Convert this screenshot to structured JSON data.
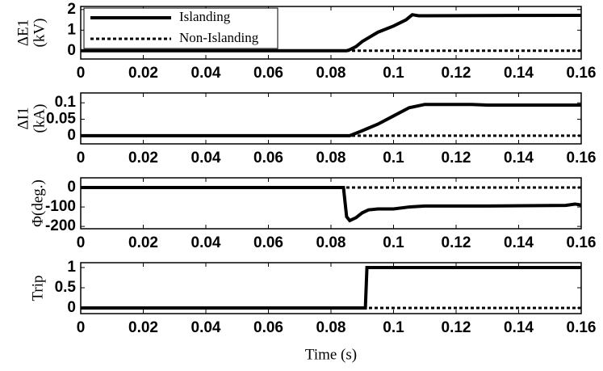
{
  "chart_data": [
    {
      "type": "line",
      "ylabel": [
        "ΔE1",
        "(kV)"
      ],
      "legend": "upper left",
      "x": [
        0,
        0.085,
        0.086,
        0.088,
        0.09,
        0.095,
        0.1,
        0.104,
        0.106,
        0.108,
        0.11,
        0.16
      ],
      "series": [
        {
          "name": "Islanding",
          "color": "#000000",
          "dash": false,
          "values": [
            0,
            0,
            0.05,
            0.2,
            0.45,
            0.9,
            1.2,
            1.5,
            1.75,
            1.7,
            1.7,
            1.72
          ]
        },
        {
          "name": "Non-Islanding",
          "color": "#000000",
          "dash": true,
          "values": [
            0,
            0,
            0,
            0,
            0,
            0,
            0,
            0,
            0,
            0,
            0,
            0
          ]
        }
      ],
      "xlim": [
        0,
        0.16
      ],
      "xticks": [
        0,
        0.02,
        0.04,
        0.06,
        0.08,
        0.1,
        0.12,
        0.14,
        0.16
      ],
      "ylim": [
        -0.4,
        2.15
      ],
      "yticks": [
        0,
        1,
        2
      ]
    },
    {
      "type": "line",
      "ylabel": [
        "ΔI1",
        "(kA)"
      ],
      "x": [
        0,
        0.086,
        0.09,
        0.095,
        0.1,
        0.105,
        0.11,
        0.125,
        0.13,
        0.16
      ],
      "series": [
        {
          "color": "#000000",
          "dash": false,
          "values": [
            0,
            0,
            0.015,
            0.035,
            0.06,
            0.085,
            0.095,
            0.095,
            0.093,
            0.093
          ]
        },
        {
          "color": "#000000",
          "dash": true,
          "values": [
            0,
            0,
            0,
            0,
            0,
            0,
            0,
            0,
            0,
            0
          ]
        }
      ],
      "xlim": [
        0,
        0.16
      ],
      "xticks": [
        0,
        0.02,
        0.04,
        0.06,
        0.08,
        0.1,
        0.12,
        0.14,
        0.16
      ],
      "ylim": [
        -0.025,
        0.13
      ],
      "yticks": [
        0,
        0.05,
        0.1
      ]
    },
    {
      "type": "line",
      "ylabel": [
        "Φ(deg.)"
      ],
      "x": [
        0,
        0.084,
        0.085,
        0.086,
        0.088,
        0.09,
        0.092,
        0.095,
        0.1,
        0.105,
        0.11,
        0.13,
        0.155,
        0.158,
        0.16
      ],
      "series": [
        {
          "color": "#000000",
          "dash": false,
          "values": [
            0,
            0,
            -150,
            -170,
            -155,
            -130,
            -115,
            -110,
            -110,
            -100,
            -95,
            -95,
            -92,
            -85,
            -90
          ]
        },
        {
          "color": "#000000",
          "dash": true,
          "values": [
            0,
            0,
            0,
            0,
            0,
            0,
            0,
            0,
            0,
            0,
            0,
            0,
            0,
            0,
            0
          ]
        }
      ],
      "xlim": [
        0,
        0.16
      ],
      "xticks": [
        0,
        0.02,
        0.04,
        0.06,
        0.08,
        0.1,
        0.12,
        0.14,
        0.16
      ],
      "ylim": [
        -212,
        50
      ],
      "yticks": [
        -200,
        -100,
        0
      ]
    },
    {
      "type": "line",
      "ylabel": [
        "Trip"
      ],
      "xlabel": "Time (s)",
      "x": [
        0,
        0.091,
        0.0915,
        0.16
      ],
      "series": [
        {
          "color": "#000000",
          "dash": false,
          "values": [
            0,
            0,
            1,
            1
          ]
        },
        {
          "color": "#000000",
          "dash": true,
          "values": [
            0,
            0,
            0,
            0
          ]
        }
      ],
      "xlim": [
        0,
        0.16
      ],
      "xticks": [
        0,
        0.02,
        0.04,
        0.06,
        0.08,
        0.1,
        0.12,
        0.14,
        0.16
      ],
      "ylim": [
        -0.14,
        1.12
      ],
      "yticks": [
        0,
        0.5,
        1
      ]
    }
  ]
}
